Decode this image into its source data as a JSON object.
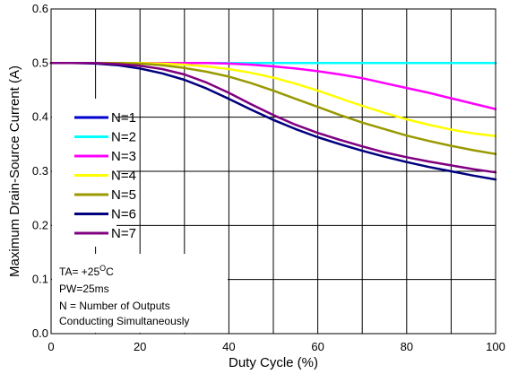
{
  "chart_data": {
    "type": "line",
    "xlabel": "Duty Cycle (%)",
    "ylabel": "Maximum Drain-Source Current (A)",
    "xlim": [
      0,
      100
    ],
    "ylim": [
      0.0,
      0.6
    ],
    "x_ticks": [
      "0",
      "20",
      "40",
      "60",
      "80",
      "100"
    ],
    "y_ticks": [
      "0.0",
      "0.1",
      "0.2",
      "0.3",
      "0.4",
      "0.5",
      "0.6"
    ],
    "grid": true,
    "legend_placement": "left",
    "x": [
      0,
      5,
      10,
      15,
      20,
      25,
      30,
      35,
      40,
      45,
      50,
      55,
      60,
      65,
      70,
      75,
      80,
      85,
      90,
      95,
      100
    ],
    "series": [
      {
        "name": "N=1",
        "color": "#0000cc",
        "values": [
          0.5,
          0.5,
          0.5,
          0.5,
          0.5,
          0.5,
          0.5,
          0.5,
          0.5,
          0.5,
          0.5,
          0.5,
          0.5,
          0.5,
          0.5,
          0.5,
          0.5,
          0.5,
          0.5,
          0.5,
          0.5
        ]
      },
      {
        "name": "N=2",
        "color": "#00ffff",
        "values": [
          0.5,
          0.5,
          0.5,
          0.5,
          0.5,
          0.5,
          0.5,
          0.5,
          0.5,
          0.5,
          0.5,
          0.5,
          0.5,
          0.5,
          0.5,
          0.5,
          0.5,
          0.5,
          0.5,
          0.5,
          0.5
        ]
      },
      {
        "name": "N=3",
        "color": "#ff00ff",
        "values": [
          0.5,
          0.5,
          0.5,
          0.5,
          0.5,
          0.5,
          0.5,
          0.5,
          0.499,
          0.497,
          0.494,
          0.49,
          0.485,
          0.479,
          0.472,
          0.463,
          0.454,
          0.445,
          0.435,
          0.425,
          0.415
        ]
      },
      {
        "name": "N=4",
        "color": "#ffff00",
        "values": [
          0.5,
          0.5,
          0.5,
          0.5,
          0.5,
          0.499,
          0.497,
          0.494,
          0.489,
          0.482,
          0.473,
          0.462,
          0.449,
          0.435,
          0.421,
          0.408,
          0.396,
          0.386,
          0.377,
          0.37,
          0.365
        ]
      },
      {
        "name": "N=5",
        "color": "#999900",
        "values": [
          0.5,
          0.5,
          0.5,
          0.5,
          0.499,
          0.496,
          0.491,
          0.484,
          0.475,
          0.463,
          0.449,
          0.434,
          0.419,
          0.404,
          0.39,
          0.378,
          0.366,
          0.356,
          0.347,
          0.339,
          0.332
        ]
      },
      {
        "name": "N=6",
        "color": "#000080",
        "values": [
          0.5,
          0.5,
          0.499,
          0.496,
          0.49,
          0.481,
          0.469,
          0.453,
          0.434,
          0.414,
          0.395,
          0.378,
          0.363,
          0.35,
          0.338,
          0.327,
          0.317,
          0.308,
          0.3,
          0.292,
          0.285
        ]
      },
      {
        "name": "N=7",
        "color": "#800080",
        "values": [
          0.5,
          0.5,
          0.5,
          0.498,
          0.495,
          0.489,
          0.479,
          0.464,
          0.445,
          0.424,
          0.404,
          0.386,
          0.371,
          0.358,
          0.346,
          0.335,
          0.326,
          0.318,
          0.311,
          0.304,
          0.298
        ]
      }
    ],
    "annotation_lines": [
      "TA= +25",
      "O",
      "C",
      "PW=25ms",
      "N = Number of Outputs",
      "Conducting Simultaneously"
    ]
  }
}
